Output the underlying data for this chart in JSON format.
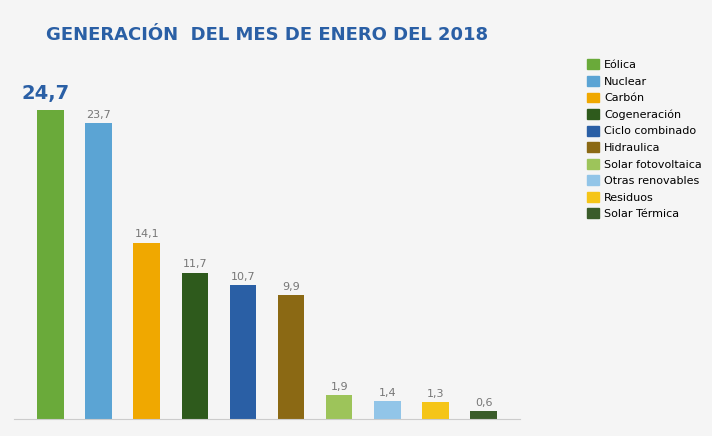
{
  "title": "GENERACIÓN  DEL MES DE ENERO DEL 2018",
  "categories": [
    "Eólica",
    "Nuclear",
    "Carbón",
    "Cogeneración",
    "Ciclo combinado",
    "Hidraulica",
    "Solar fotovoltaica",
    "Otras renovables",
    "Residuos",
    "Solar Térmica"
  ],
  "values": [
    24.7,
    23.7,
    14.1,
    11.7,
    10.7,
    9.9,
    1.9,
    1.4,
    1.3,
    0.6
  ],
  "labels": [
    "24,7",
    "23,7",
    "14,1",
    "11,7",
    "10,7",
    "9,9",
    "1,9",
    "1,4",
    "1,3",
    "0,6"
  ],
  "colors": [
    "#6aaa3a",
    "#5ba4d4",
    "#f0a800",
    "#2e5a1c",
    "#2a5fa5",
    "#8b6914",
    "#9dc45a",
    "#92c5e8",
    "#f5c518",
    "#3a5c2a"
  ],
  "title_color": "#2a5fa5",
  "title_fontsize": 13,
  "label_fontsize": 8,
  "first_bar_label_fontsize": 14,
  "ylim": [
    0,
    29
  ],
  "background_color": "#f5f5f5",
  "legend_labels": [
    "Eólica",
    "Nuclear",
    "Carbón",
    "Cogeneración",
    "Ciclo combinado",
    "Hidraulica",
    "Solar fotovoltaica",
    "Otras renovables",
    "Residuos",
    "Solar Térmica"
  ]
}
